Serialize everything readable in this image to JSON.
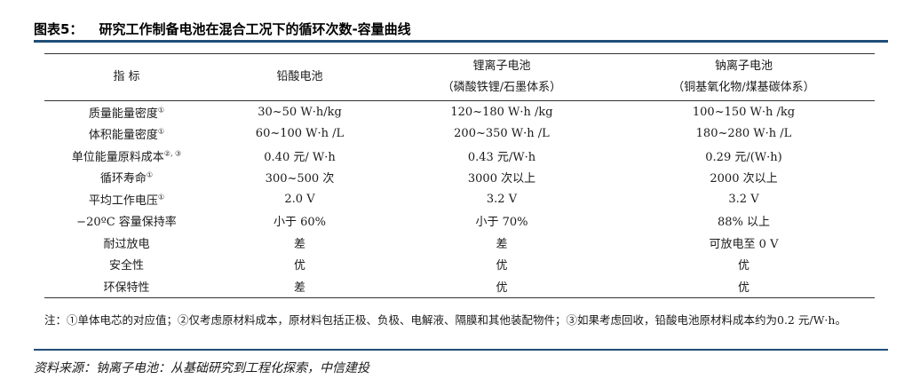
{
  "figure": {
    "label": "图表5：",
    "title": "研究工作制备电池在混合工况下的循环次数-容量曲线"
  },
  "table": {
    "headers": [
      {
        "line1": "指 标",
        "line2": ""
      },
      {
        "line1": "铅酸电池",
        "line2": ""
      },
      {
        "line1": "锂离子电池",
        "line2": "（磷酸铁锂/石墨体系）"
      },
      {
        "line1": "钠离子电池",
        "line2": "（铜基氧化物/煤基碳体系）"
      }
    ],
    "rows": [
      {
        "metric": "质量能量密度",
        "note": "①",
        "lead_acid": "30~50 W·h/kg",
        "li_ion": "120~180 W·h /kg",
        "na_ion": "100~150 W·h /kg"
      },
      {
        "metric": "体积能量密度",
        "note": "①",
        "lead_acid": "60~100 W·h /L",
        "li_ion": "200~350 W·h /L",
        "na_ion": "180~280 W·h /L"
      },
      {
        "metric": "单位能量原料成本",
        "note": "②, ③",
        "lead_acid": "0.40 元/ W·h",
        "li_ion": "0.43 元/W·h",
        "na_ion": "0.29 元/(W·h)"
      },
      {
        "metric": "循环寿命",
        "note": "①",
        "lead_acid": "300~500 次",
        "li_ion": "3000 次以上",
        "na_ion": "2000 次以上"
      },
      {
        "metric": "平均工作电压",
        "note": "①",
        "lead_acid": "2.0 V",
        "li_ion": "3.2 V",
        "na_ion": "3.2 V"
      },
      {
        "metric": "−20ºC 容量保持率",
        "note": "",
        "lead_acid": "小于 60%",
        "li_ion": "小于 70%",
        "na_ion": "88% 以上"
      },
      {
        "metric": "耐过放电",
        "note": "",
        "lead_acid": "差",
        "li_ion": "差",
        "na_ion": "可放电至 0 V"
      },
      {
        "metric": "安全性",
        "note": "",
        "lead_acid": "优",
        "li_ion": "优",
        "na_ion": "优"
      },
      {
        "metric": "环保特性",
        "note": "",
        "lead_acid": "差",
        "li_ion": "优",
        "na_ion": "优"
      }
    ]
  },
  "footnote": "注：①单体电芯的对应值；②仅考虑原材料成本，原材料包括正极、负极、电解液、隔膜和其他装配物件；③如果考虑回收，铅酸电池原材料成本约为0.2 元/W·h。",
  "source": "资料来源：钠离子电池：从基础研究到工程化探索，中信建投"
}
